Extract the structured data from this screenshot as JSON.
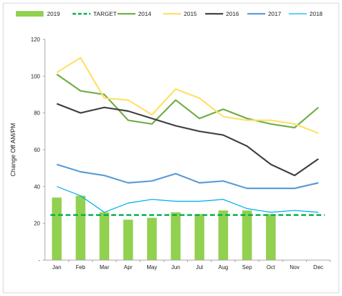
{
  "chart_data": {
    "type": "bar",
    "categories": [
      "Jan",
      "Feb",
      "Mar",
      "Apr",
      "May",
      "Jun",
      "Jul",
      "Aug",
      "Sep",
      "Oct",
      "Nov",
      "Dec"
    ],
    "ylabel": "Change Off AM/PM",
    "ylim": [
      0,
      120
    ],
    "yticks": [
      0,
      20,
      40,
      60,
      80,
      100,
      120
    ],
    "ytick_labels": [
      "-",
      "20",
      "40",
      "60",
      "80",
      "100",
      "120"
    ],
    "grid": false,
    "legend_position": "top",
    "bars": {
      "name": "2019",
      "color": "#92d050",
      "values": [
        34,
        35,
        26,
        22,
        23,
        26,
        25,
        27,
        27,
        25,
        null,
        null
      ]
    },
    "target": {
      "name": "TARGET",
      "color": "#00b050",
      "value": 24.5
    },
    "series": [
      {
        "name": "2014",
        "color": "#70ad47",
        "values": [
          101,
          92,
          90,
          76,
          74,
          87,
          77,
          82,
          77,
          74,
          72,
          83
        ]
      },
      {
        "name": "2015",
        "color": "#ffe066",
        "values": [
          102,
          110,
          88,
          87,
          79,
          93,
          88,
          78,
          76,
          76,
          74,
          69
        ]
      },
      {
        "name": "2016",
        "color": "#404040",
        "values": [
          85,
          80,
          83,
          81,
          77,
          73,
          70,
          68,
          62,
          52,
          46,
          55
        ]
      },
      {
        "name": "2017",
        "color": "#5b9bd5",
        "values": [
          52,
          48,
          46,
          42,
          43,
          47,
          42,
          43,
          39,
          39,
          39,
          42
        ]
      },
      {
        "name": "2018",
        "color": "#00b0f0",
        "values": [
          40,
          35,
          26,
          31,
          33,
          32,
          32,
          33,
          28,
          26,
          27,
          26
        ]
      }
    ]
  }
}
